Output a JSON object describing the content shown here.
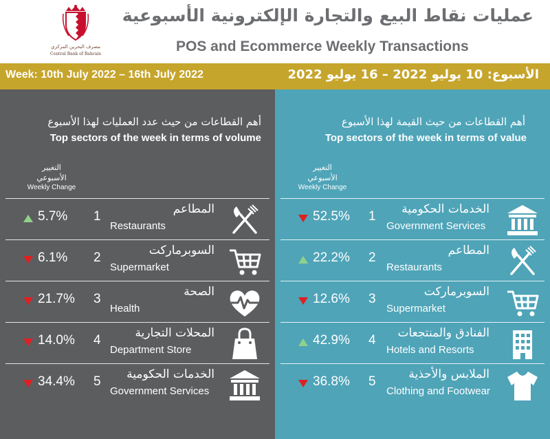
{
  "header": {
    "logo_ar": "مصرف البحرين المركزي",
    "logo_en": "Central Bank of Bahrain",
    "title_ar": "عمليات نقاط البيع والتجارة الإلكترونية الأسبوعية",
    "title_en": "POS and Ecommerce Weekly Transactions"
  },
  "week": {
    "en": "Week: 10th July 2022 – 16th July 2022",
    "ar": "الأسبوع: 10 يوليو 2022 – 16 يوليو 2022"
  },
  "colors": {
    "gold": "#c6a52c",
    "left_panel": "#5c5d5f",
    "right_panel": "#4fa4b8",
    "up": "#8fd28a",
    "down": "#e02020"
  },
  "volume": {
    "title_ar": "أهم القطاعات من حيث عدد العمليات لهذا الأسبوع",
    "title_en": "Top sectors of the week in terms of volume",
    "change_ar_1": "التغيير",
    "change_ar_2": "الأسبوعي",
    "change_en": "Weekly Change",
    "rows": [
      {
        "rank": "1",
        "pct": "5.7%",
        "dir": "up",
        "name_ar": "المطاعم",
        "name_en": "Restaurants",
        "icon": "fork-knife-icon"
      },
      {
        "rank": "2",
        "pct": "6.1%",
        "dir": "down",
        "name_ar": "السوبرماركت",
        "name_en": "Supermarket",
        "icon": "cart-icon"
      },
      {
        "rank": "3",
        "pct": "21.7%",
        "dir": "down",
        "name_ar": "الصحة",
        "name_en": "Health",
        "icon": "heart-pulse-icon"
      },
      {
        "rank": "4",
        "pct": "14.0%",
        "dir": "down",
        "name_ar": "المحلات التجارية",
        "name_en": "Department Store",
        "icon": "shopping-bag-icon"
      },
      {
        "rank": "5",
        "pct": "34.4%",
        "dir": "down",
        "name_ar": "الخدمات الحكومية",
        "name_en": "Government Services",
        "icon": "government-building-icon"
      }
    ]
  },
  "value": {
    "title_ar": "أهم القطاعات من حيث القيمة لهذا الأسبوع",
    "title_en": "Top sectors of the week in terms of value",
    "change_ar_1": "التغيير",
    "change_ar_2": "الأسبوعي",
    "change_en": "Weekly Change",
    "rows": [
      {
        "rank": "1",
        "pct": "52.5%",
        "dir": "down",
        "name_ar": "الخدمات الحكومية",
        "name_en": "Government Services",
        "icon": "government-building-icon"
      },
      {
        "rank": "2",
        "pct": "22.2%",
        "dir": "up",
        "name_ar": "المطاعم",
        "name_en": "Restaurants",
        "icon": "fork-knife-icon"
      },
      {
        "rank": "3",
        "pct": "12.6%",
        "dir": "down",
        "name_ar": "السوبرماركت",
        "name_en": "Supermarket",
        "icon": "cart-icon"
      },
      {
        "rank": "4",
        "pct": "42.9%",
        "dir": "up",
        "name_ar": "الفنادق والمنتجعات",
        "name_en": "Hotels and Resorts",
        "icon": "hotel-building-icon"
      },
      {
        "rank": "5",
        "pct": "36.8%",
        "dir": "down",
        "name_ar": "الملابس والأحذية",
        "name_en": "Clothing and Footwear",
        "icon": "tshirt-icon"
      }
    ]
  }
}
